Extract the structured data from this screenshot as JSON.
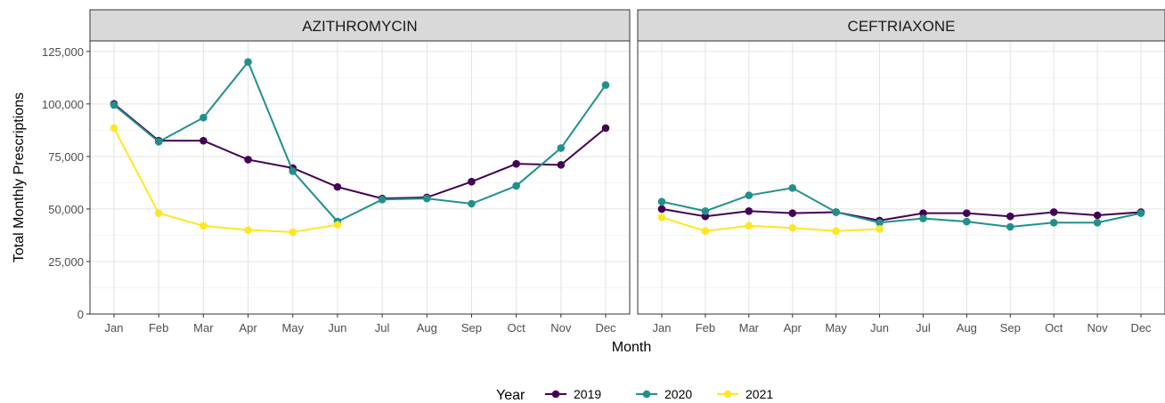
{
  "chart_data": {
    "type": "line",
    "xlabel": "Month",
    "ylabel": "Total Monthly Prescriptions",
    "ylim": [
      0,
      130000
    ],
    "yticks": [
      0,
      25000,
      50000,
      75000,
      100000,
      125000
    ],
    "ytick_labels": [
      "0",
      "25,000",
      "50,000",
      "75,000",
      "100,000",
      "125,000"
    ],
    "categories": [
      "Jan",
      "Feb",
      "Mar",
      "Apr",
      "May",
      "Jun",
      "Jul",
      "Aug",
      "Sep",
      "Oct",
      "Nov",
      "Dec"
    ],
    "grid": true,
    "legend": {
      "title": "Year",
      "placement": "bottom",
      "entries": [
        "2019",
        "2020",
        "2021"
      ]
    },
    "colors": {
      "2019": "#440154",
      "2020": "#21908C",
      "2021": "#FDE725"
    },
    "panels": [
      {
        "title": "AZITHROMYCIN",
        "series": [
          {
            "name": "2019",
            "values": [
              100000,
              82500,
              82500,
              73500,
              69500,
              60500,
              55000,
              55500,
              63000,
              71500,
              71000,
              88500
            ]
          },
          {
            "name": "2020",
            "values": [
              99500,
              82000,
              93500,
              120000,
              68000,
              44000,
              54500,
              55000,
              52500,
              61000,
              79000,
              109000
            ]
          },
          {
            "name": "2021",
            "values": [
              88500,
              48000,
              42000,
              40000,
              39000,
              42500
            ]
          }
        ]
      },
      {
        "title": "CEFTRIAXONE",
        "series": [
          {
            "name": "2019",
            "values": [
              50000,
              46500,
              49000,
              48000,
              48500,
              44500,
              48000,
              48000,
              46500,
              48500,
              47000,
              48500
            ]
          },
          {
            "name": "2020",
            "values": [
              53500,
              49000,
              56500,
              60000,
              48500,
              43500,
              45500,
              44000,
              41500,
              43500,
              43500,
              48000
            ]
          },
          {
            "name": "2021",
            "values": [
              46000,
              39500,
              42000,
              41000,
              39500,
              40500
            ]
          }
        ]
      }
    ]
  }
}
